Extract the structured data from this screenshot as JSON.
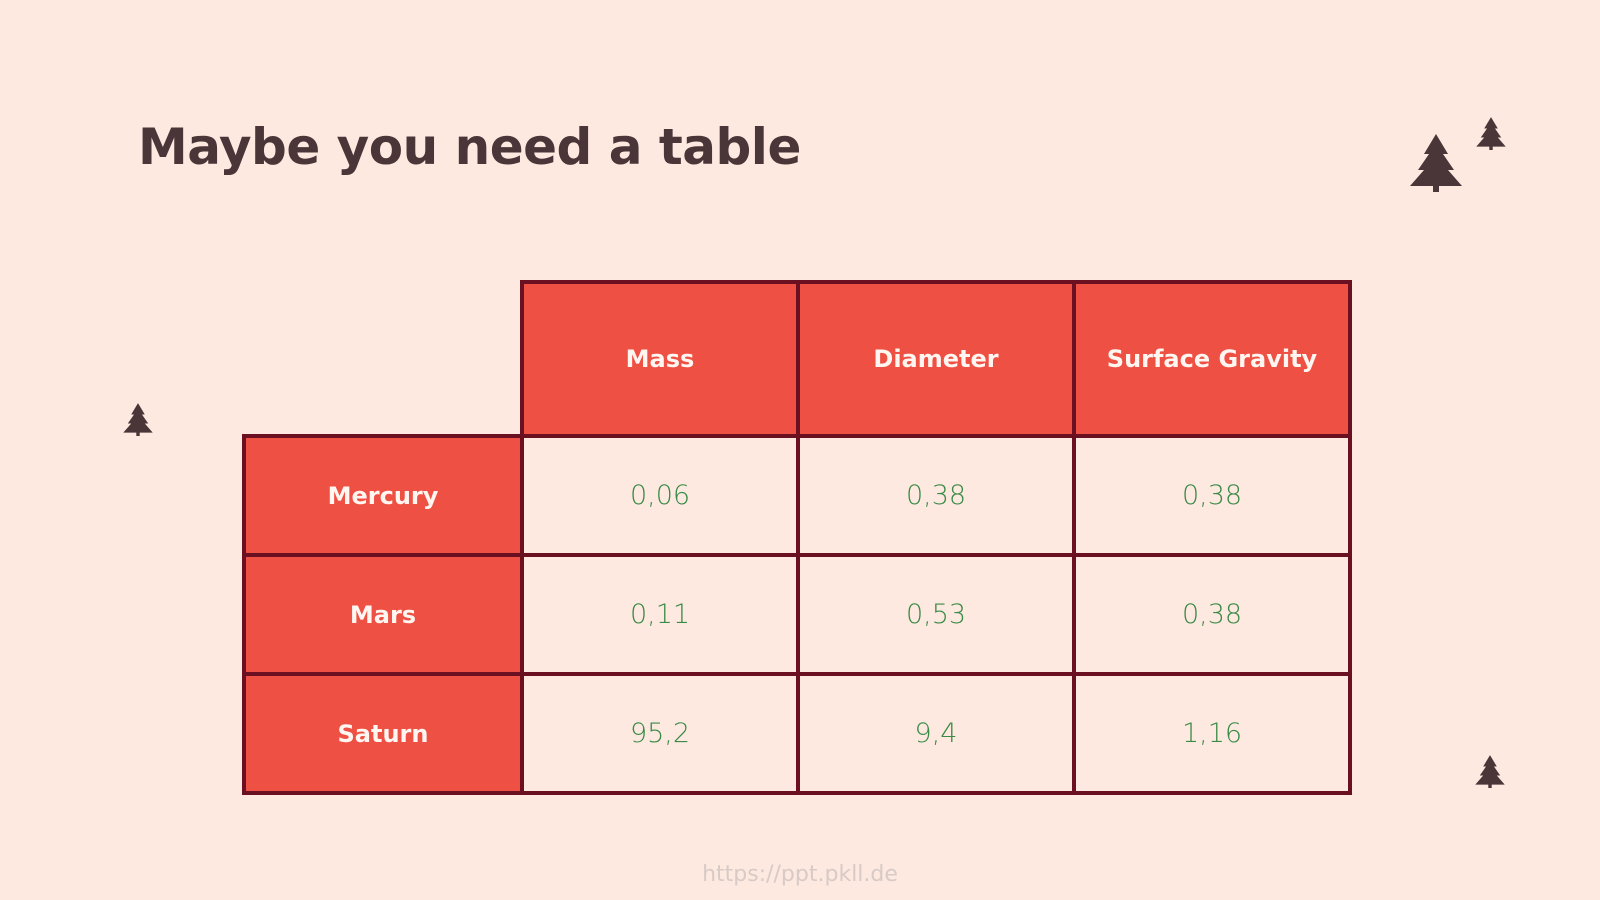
{
  "header": {
    "title": "Maybe you need a table"
  },
  "table": {
    "columns": [
      "Mass",
      "Diameter",
      "Surface Gravity"
    ],
    "rows": [
      [
        "Mercury",
        "0,06",
        "0,38",
        "0,38"
      ],
      [
        "Mars",
        "0,11",
        "0,53",
        "0,38"
      ],
      [
        "Saturn",
        "95,2",
        "9,4",
        "1,16"
      ]
    ]
  },
  "footer": {
    "watermark": "https://ppt.pkll.de"
  }
}
